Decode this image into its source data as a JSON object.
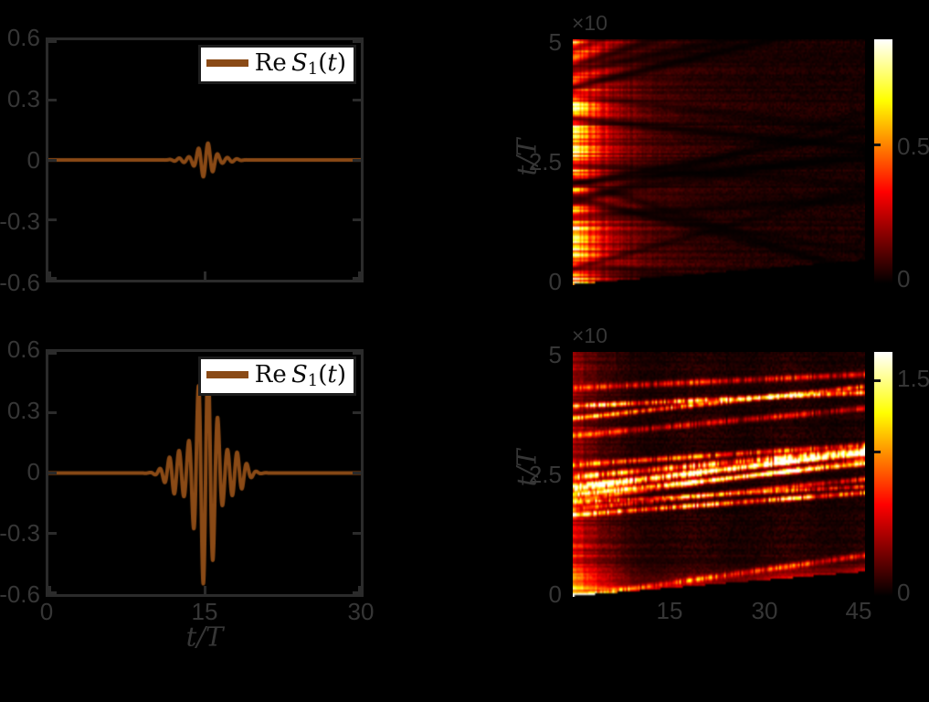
{
  "figure": {
    "background": "#000000",
    "axis_color": "#2b2b2b",
    "label_color": "#363636",
    "line_color": "#8a4a16",
    "colormap_stops": [
      [
        0,
        "#000000"
      ],
      [
        0.375,
        "#ff0000"
      ],
      [
        0.75,
        "#ffff00"
      ],
      [
        1,
        "#ffffff"
      ]
    ]
  },
  "chart_data": [
    {
      "id": "signal_top",
      "type": "line",
      "xlim": [
        0,
        30
      ],
      "ylim": [
        -0.6,
        0.6
      ],
      "xticks": [
        0,
        15,
        30
      ],
      "yticks": [
        0.6,
        0.3,
        0,
        -0.3,
        -0.6
      ],
      "ytick_labels": [
        "0.6",
        "0.3",
        "0",
        "-0.3",
        "-0.6"
      ],
      "xtick_labels_visible": false,
      "grid": false,
      "legend": {
        "position": "northeast",
        "prefix": "Re",
        "sym": "S",
        "sub": "1",
        "open": "(",
        "var": "t",
        "close": ")"
      },
      "series": [
        {
          "name": "Re S1(t)",
          "color": "#8a4a16",
          "waveform": {
            "center": 15.1,
            "sigma": 1.8,
            "amplitude": 0.088,
            "carrier_period": 0.93,
            "beat_period": 3.2,
            "beat_depth": 0.3
          }
        }
      ]
    },
    {
      "id": "signal_bottom",
      "type": "line",
      "xlim": [
        0,
        30
      ],
      "ylim": [
        -0.6,
        0.6
      ],
      "xticks": [
        0,
        15,
        30
      ],
      "yticks": [
        0.6,
        0.3,
        0,
        -0.3,
        -0.6
      ],
      "ytick_labels": [
        "0.6",
        "0.3",
        "0",
        "-0.3",
        "-0.6"
      ],
      "xtick_labels": [
        "0",
        "15",
        "30"
      ],
      "xlabel": "t/T",
      "grid": false,
      "legend": {
        "position": "northeast",
        "prefix": "Re",
        "sym": "S",
        "sub": "1",
        "open": "(",
        "var": "t",
        "close": ")"
      },
      "series": [
        {
          "name": "Re S1(t)",
          "color": "#8a4a16",
          "waveform": {
            "center": 15.1,
            "sigma": 2.5,
            "amplitude": 0.565,
            "carrier_period": 0.93,
            "beat_period": 3.8,
            "beat_depth": 0.3
          }
        }
      ]
    },
    {
      "id": "spectrum_top",
      "type": "heatmap",
      "xlim": [
        0,
        46.5
      ],
      "xticks": [
        15,
        30,
        45
      ],
      "xtick_labels_visible": false,
      "ylim": [
        0,
        5
      ],
      "yticks": [
        5,
        2.5,
        0
      ],
      "ytick_labels": [
        "5",
        "2.5",
        "0"
      ],
      "y_exponent": "×10",
      "ylabel": "t/T",
      "colormap": "hot",
      "clim": [
        0,
        0.88
      ],
      "colorbar": {
        "ticks": [
          {
            "v": 0.5,
            "label": "0.5"
          },
          {
            "v": 0,
            "label": "0"
          }
        ],
        "dash_values": [
          0.5
        ]
      },
      "pattern": {
        "seed": 7,
        "left_band": {
          "peak1": 0.55,
          "decay1": 3.5,
          "peak2": 0.2,
          "decay2": 9
        },
        "haze": 0.035,
        "mid_band_gain": 0.05,
        "row_stripe_strength": 0.8,
        "dark_streaks": 18,
        "bright_streaks": 0,
        "bottom_glow": 0,
        "wedge_height_frac": 0.1
      }
    },
    {
      "id": "spectrum_bottom",
      "type": "heatmap",
      "xlim": [
        0,
        46.5
      ],
      "xticks": [
        15,
        30,
        45
      ],
      "xtick_labels": [
        "15",
        "30",
        "45"
      ],
      "ylim": [
        0,
        5
      ],
      "yticks": [
        5,
        2.5,
        0
      ],
      "ytick_labels": [
        "5",
        "2.5",
        "0"
      ],
      "y_exponent": "×10",
      "ylabel": "t/T",
      "colormap": "hot",
      "clim": [
        0,
        1.7
      ],
      "colorbar": {
        "ticks": [
          {
            "v": 1.5,
            "label": "1.5"
          },
          {
            "v": 0,
            "label": "0"
          }
        ],
        "dash_values": [
          1.5,
          1.0
        ]
      },
      "pattern": {
        "seed": 12,
        "left_band": {
          "peak1": 0.22,
          "decay1": 3.0,
          "peak2": 0.0,
          "decay2": 9
        },
        "haze": 0.05,
        "mid_band_gain": 0.0,
        "row_stripe_strength": 0.7,
        "dark_streaks": 0,
        "bright_streaks": 16,
        "streak_slope_min": 0.05,
        "streak_slope_max": 0.18,
        "bottom_glow": 0.45,
        "wedge_height_frac": 0.1
      }
    }
  ]
}
